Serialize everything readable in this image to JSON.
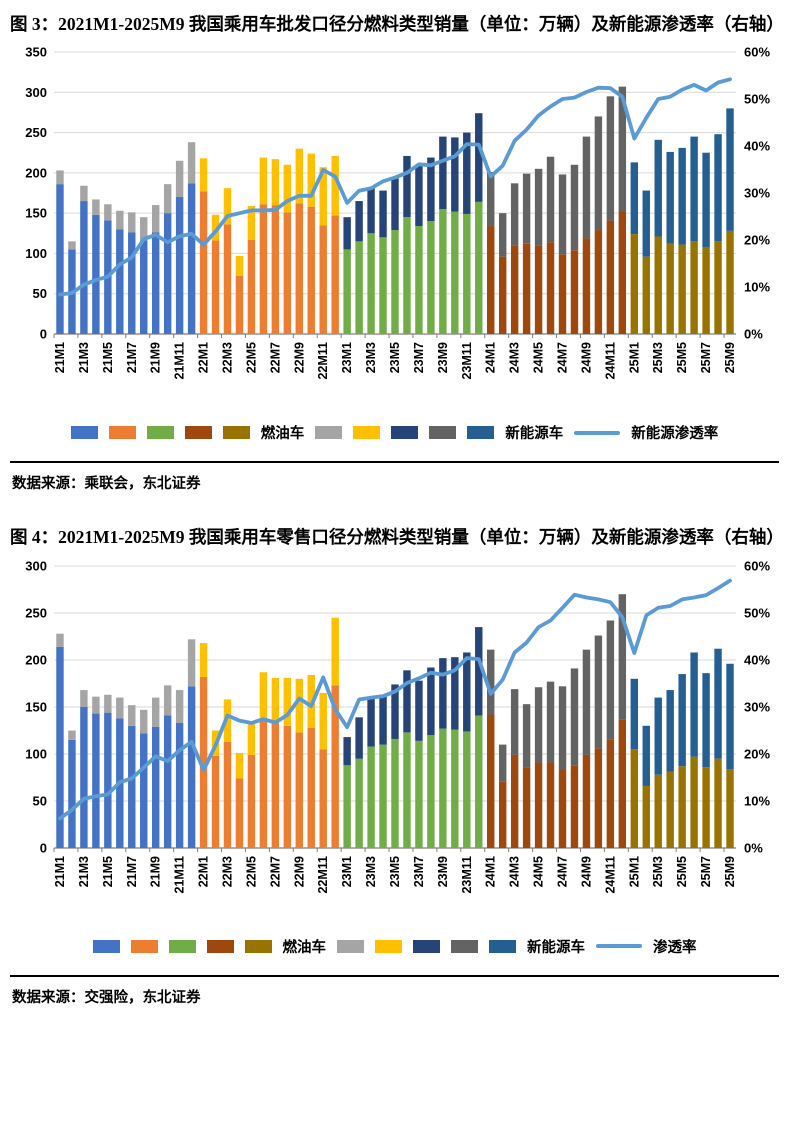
{
  "figures": [
    {
      "title": "图 3：2021M1-2025M9 我国乘用车批发口径分燃料类型销量（单位：万辆）及新能源渗透率（右轴）",
      "source": "数据来源：乘联会，东北证券",
      "legend": {
        "fuel": "燃油车",
        "nev": "新能源车",
        "line": "新能源渗透率"
      },
      "chart_data": {
        "type": "combo",
        "x": [
          "21M1",
          "21M2",
          "21M3",
          "21M4",
          "21M5",
          "21M6",
          "21M7",
          "21M8",
          "21M9",
          "21M10",
          "21M11",
          "21M12",
          "22M1",
          "22M2",
          "22M3",
          "22M4",
          "22M5",
          "22M6",
          "22M7",
          "22M8",
          "22M9",
          "22M10",
          "22M11",
          "22M12",
          "23M1",
          "23M2",
          "23M3",
          "23M4",
          "23M5",
          "23M6",
          "23M7",
          "23M8",
          "23M9",
          "23M10",
          "23M11",
          "23M12",
          "24M1",
          "24M2",
          "24M3",
          "24M4",
          "24M5",
          "24M6",
          "24M7",
          "24M8",
          "24M9",
          "24M10",
          "24M11",
          "24M12",
          "25M1",
          "25M2",
          "25M3",
          "25M4",
          "25M5",
          "25M6",
          "25M7",
          "25M8",
          "25M9"
        ],
        "x_tick_step": 2,
        "left_axis": {
          "min": 0,
          "max": 350,
          "step": 50,
          "unit": "万辆"
        },
        "right_axis": {
          "min": 0,
          "max": 60,
          "step": 10,
          "suffix": "%"
        },
        "line_color": "#5B9BD5",
        "grid": true,
        "legend_position": "bottom",
        "year_colors": {
          "21": {
            "fuel": "#4472C4",
            "nev": "#A5A5A5"
          },
          "22": {
            "fuel": "#ED7D31",
            "nev": "#FFC000"
          },
          "23": {
            "fuel": "#70AD47",
            "nev": "#264478"
          },
          "24": {
            "fuel": "#9E480E",
            "nev": "#636363"
          },
          "25": {
            "fuel": "#997300",
            "nev": "#255E91"
          }
        },
        "series": [
          {
            "name": "燃油车",
            "type": "bar-stack",
            "values": [
              186,
              105,
              165,
              148,
              141,
              130,
              126,
              116,
              126,
              150,
              170,
              187,
              177,
              116,
              136,
              72,
              117,
              161,
              160,
              151,
              162,
              158,
              135,
              147,
              105,
              115,
              125,
              120,
              129,
              145,
              134,
              140,
              155,
              152,
              149,
              164,
              134,
              96,
              110,
              112,
              110,
              114,
              99,
              104,
              119,
              129,
              141,
              152,
              124,
              96,
              121,
              112,
              111,
              115,
              108,
              115,
              128
            ]
          },
          {
            "name": "新能源车",
            "type": "bar-stack",
            "values": [
              17,
              10,
              19,
              19,
              20,
              23,
              25,
              29,
              34,
              36,
              45,
              51,
              41,
              32,
              45,
              25,
              42,
              58,
              57,
              59,
              68,
              66,
              72,
              74,
              40,
              50,
              56,
              58,
              64,
              76,
              76,
              79,
              90,
              92,
              101,
              110,
              67,
              54,
              77,
              87,
              95,
              106,
              99,
              106,
              126,
              141,
              154,
              155,
              89,
              82,
              120,
              114,
              120,
              130,
              117,
              133,
              152
            ]
          },
          {
            "name": "新能源渗透率",
            "type": "line",
            "axis": "right",
            "values": [
              8.4,
              8.7,
              10.5,
              11.5,
              12.2,
              14.8,
              16.3,
              20.2,
              21.1,
              19.5,
              20.8,
              21.3,
              19,
              21.8,
              25.1,
              25.7,
              26.3,
              26.3,
              26.4,
              28.3,
              29.4,
              29.4,
              34.9,
              33.5,
              27.9,
              30.5,
              31,
              32.5,
              33.3,
              34.3,
              36.1,
              35.9,
              36.9,
              37.8,
              40.4,
              40.3,
              33.5,
              35.8,
              41.1,
              43.5,
              46.5,
              48.4,
              50,
              50.3,
              51.5,
              52.4,
              52.3,
              50.5,
              41.6,
              46,
              50,
              50.5,
              52,
              53,
              51.8,
              53.5,
              54.2
            ]
          }
        ]
      }
    },
    {
      "title": "图 4：2021M1-2025M9 我国乘用车零售口径分燃料类型销量（单位：万辆）及新能源渗透率（右轴）",
      "source": "数据来源：交强险，东北证券",
      "legend": {
        "fuel": "燃油车",
        "nev": "新能源车",
        "line": "渗透率"
      },
      "chart_data": {
        "type": "combo",
        "x": [
          "21M1",
          "21M2",
          "21M3",
          "21M4",
          "21M5",
          "21M6",
          "21M7",
          "21M8",
          "21M9",
          "21M10",
          "21M11",
          "21M12",
          "22M1",
          "22M2",
          "22M3",
          "22M4",
          "22M5",
          "22M6",
          "22M7",
          "22M8",
          "22M9",
          "22M10",
          "22M11",
          "22M12",
          "23M1",
          "23M2",
          "23M3",
          "23M4",
          "23M5",
          "23M6",
          "23M7",
          "23M8",
          "23M9",
          "23M10",
          "23M11",
          "23M12",
          "24M1",
          "24M2",
          "24M3",
          "24M4",
          "24M5",
          "24M6",
          "24M7",
          "24M8",
          "24M9",
          "24M10",
          "24M11",
          "24M12",
          "25M1",
          "25M2",
          "25M3",
          "25M4",
          "25M5",
          "25M6",
          "25M7",
          "25M8",
          "25M9"
        ],
        "x_tick_step": 2,
        "left_axis": {
          "min": 0,
          "max": 300,
          "step": 50,
          "unit": "万辆"
        },
        "right_axis": {
          "min": 0,
          "max": 60,
          "step": 10,
          "suffix": "%"
        },
        "line_color": "#5B9BD5",
        "grid": true,
        "legend_position": "bottom",
        "year_colors": {
          "21": {
            "fuel": "#4472C4",
            "nev": "#A5A5A5"
          },
          "22": {
            "fuel": "#ED7D31",
            "nev": "#FFC000"
          },
          "23": {
            "fuel": "#70AD47",
            "nev": "#264478"
          },
          "24": {
            "fuel": "#9E480E",
            "nev": "#636363"
          },
          "25": {
            "fuel": "#997300",
            "nev": "#255E91"
          }
        },
        "series": [
          {
            "name": "燃油车",
            "type": "bar-stack",
            "values": [
              214,
              115,
              150,
              143,
              144,
              138,
              130,
              122,
              129,
              141,
              133,
              172,
              182,
              98,
              113,
              74,
              99,
              136,
              133,
              130,
              123,
              128,
              105,
              173,
              88,
              95,
              108,
              110,
              116,
              123,
              114,
              120,
              127,
              126,
              124,
              141,
              142,
              71,
              99,
              86,
              91,
              91,
              84,
              88,
              99,
              106,
              115,
              137,
              105,
              66,
              78,
              81,
              87,
              97,
              86,
              95,
              84
            ]
          },
          {
            "name": "新能源车",
            "type": "bar-stack",
            "values": [
              14,
              10,
              18,
              18,
              19,
              22,
              22,
              25,
              31,
              32,
              35,
              50,
              36,
              27,
              45,
              27,
              36,
              51,
              48,
              51,
              57,
              56,
              60,
              72,
              30,
              44,
              51,
              53,
              58,
              66,
              64,
              72,
              75,
              77,
              84,
              94,
              69,
              39,
              70,
              67,
              80,
              86,
              88,
              103,
              112,
              120,
              127,
              133,
              75,
              64,
              82,
              87,
              98,
              111,
              100,
              117,
              112
            ]
          },
          {
            "name": "渗透率",
            "type": "line",
            "axis": "right",
            "values": [
              6.3,
              8.1,
              10.5,
              11,
              11.4,
              14,
              14.8,
              17.1,
              19.5,
              18.5,
              20.8,
              22.6,
              16.6,
              21.8,
              28.2,
              27.1,
              26.6,
              27.4,
              26.7,
              28.3,
              31.8,
              30.2,
              36.3,
              29.5,
              25.7,
              31.6,
              32,
              32.3,
              33.3,
              35.1,
              36.1,
              37.3,
              36.9,
              37.8,
              40.4,
              40.2,
              32.8,
              35.8,
              41.6,
              43.7,
              47,
              48.4,
              51.1,
              53.9,
              53.3,
              52.9,
              52.3,
              49.1,
              41.5,
              49.5,
              51.1,
              51.5,
              52.9,
              53.3,
              53.8,
              55.3,
              56.9
            ]
          }
        ]
      }
    }
  ]
}
